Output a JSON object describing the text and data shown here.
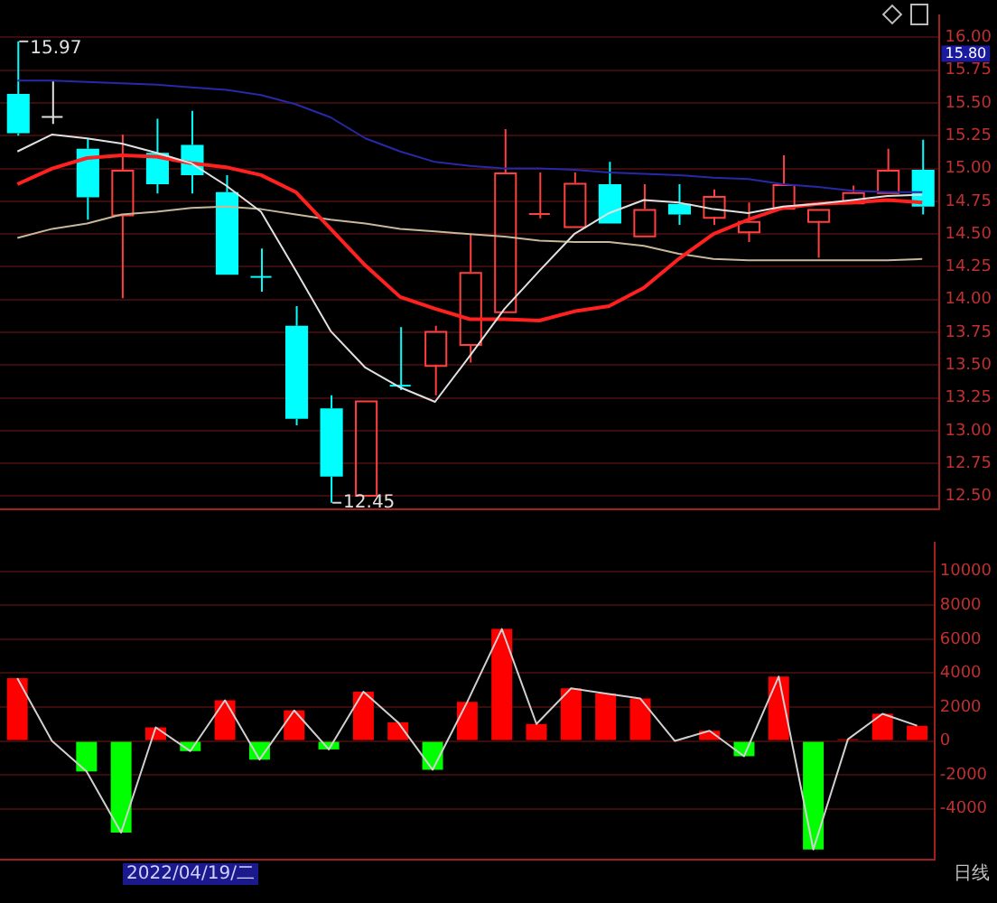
{
  "chart_data": [
    {
      "type": "candlestick",
      "categories": [
        null,
        null,
        null,
        null,
        null,
        null,
        null,
        null,
        null,
        null,
        null,
        null,
        null,
        null,
        null,
        null,
        null,
        null,
        null,
        null,
        null,
        null,
        null,
        null,
        null,
        null,
        null
      ],
      "ohlc": [
        [
          15.57,
          15.97,
          15.25,
          15.27
        ],
        [
          15.4,
          15.67,
          15.34,
          15.4
        ],
        [
          15.15,
          15.23,
          14.61,
          14.78
        ],
        [
          14.65,
          15.26,
          14.01,
          14.99
        ],
        [
          15.12,
          15.38,
          14.81,
          14.88
        ],
        [
          15.18,
          15.44,
          14.81,
          14.95
        ],
        [
          14.82,
          14.95,
          14.19,
          14.19
        ],
        [
          14.18,
          14.39,
          14.06,
          14.18
        ],
        [
          13.8,
          13.95,
          13.04,
          13.09
        ],
        [
          13.17,
          13.27,
          12.45,
          12.65
        ],
        [
          12.51,
          13.23,
          12.51,
          13.23
        ],
        [
          13.35,
          13.79,
          13.31,
          13.35
        ],
        [
          13.5,
          13.8,
          13.27,
          13.76
        ],
        [
          13.66,
          14.5,
          13.52,
          14.21
        ],
        [
          13.91,
          15.3,
          13.91,
          14.97
        ],
        [
          14.66,
          14.97,
          14.62,
          14.66
        ],
        [
          14.56,
          14.97,
          14.56,
          14.89
        ],
        [
          14.88,
          15.05,
          14.58,
          14.58
        ],
        [
          14.49,
          14.88,
          14.49,
          14.69
        ],
        [
          14.73,
          14.88,
          14.57,
          14.65
        ],
        [
          14.63,
          14.84,
          14.57,
          14.79
        ],
        [
          14.52,
          14.74,
          14.44,
          14.6
        ],
        [
          14.7,
          15.1,
          14.7,
          14.88
        ],
        [
          14.6,
          14.69,
          14.32,
          14.69
        ],
        [
          14.74,
          14.87,
          14.74,
          14.82
        ],
        [
          14.82,
          15.15,
          14.82,
          14.99
        ],
        [
          14.99,
          15.22,
          14.65,
          14.71
        ]
      ],
      "colors": [
        "#00ffff",
        "#e0e0e0",
        "#00ffff",
        "#ff4040",
        "#00ffff",
        "#00ffff",
        "#00ffff",
        "#00ffff",
        "#00ffff",
        "#00ffff",
        "#ff4040",
        "#00ffff",
        "#ff4040",
        "#ff4040",
        "#ff4040",
        "#ff4040",
        "#ff4040",
        "#00ffff",
        "#ff4040",
        "#00ffff",
        "#ff4040",
        "#ff4040",
        "#ff4040",
        "#ff4040",
        "#ff4040",
        "#ff4040",
        "#00ffff"
      ],
      "series": [
        {
          "type": "line",
          "color": "#e0e0e0",
          "values": [
            15.13,
            15.26,
            15.23,
            15.19,
            15.12,
            15.04,
            14.87,
            14.67,
            14.22,
            13.76,
            13.48,
            13.33,
            13.22,
            13.57,
            13.93,
            14.22,
            14.5,
            14.66,
            14.76,
            14.74,
            14.69,
            14.66,
            14.71,
            14.73,
            14.76,
            14.79,
            14.8
          ]
        },
        {
          "type": "line",
          "color": "#ff2020",
          "values": [
            14.88,
            15.0,
            15.08,
            15.1,
            15.09,
            15.04,
            15.01,
            14.95,
            14.82,
            14.54,
            14.26,
            14.02,
            13.93,
            13.85,
            13.85,
            13.84,
            13.91,
            13.95,
            14.09,
            14.31,
            14.5,
            14.61,
            14.7,
            14.73,
            14.74,
            14.76,
            14.74
          ]
        },
        {
          "type": "line",
          "color": "#c8b89a",
          "values": [
            14.47,
            14.54,
            14.58,
            14.65,
            14.67,
            14.7,
            14.71,
            14.69,
            14.65,
            14.61,
            14.58,
            14.54,
            14.52,
            14.5,
            14.48,
            14.45,
            14.44,
            14.44,
            14.41,
            14.35,
            14.31,
            14.3,
            14.3,
            14.3,
            14.3,
            14.3,
            14.31
          ]
        },
        {
          "type": "line",
          "color": "#2828a8",
          "values": [
            15.67,
            15.67,
            15.66,
            15.65,
            15.64,
            15.62,
            15.6,
            15.56,
            15.49,
            15.39,
            15.23,
            15.13,
            15.05,
            15.02,
            15.0,
            15.0,
            14.99,
            14.97,
            14.96,
            14.95,
            14.93,
            14.92,
            14.88,
            14.86,
            14.83,
            14.82,
            14.82
          ]
        }
      ],
      "ylim": [
        12.4,
        16.17
      ],
      "yticks": [
        {
          "value": 12.5,
          "label": "12.50"
        },
        {
          "value": 12.75,
          "label": "12.75"
        },
        {
          "value": 13,
          "label": "13.00"
        },
        {
          "value": 13.25,
          "label": "13.25"
        },
        {
          "value": 13.5,
          "label": "13.50"
        },
        {
          "value": 13.75,
          "label": "13.75"
        },
        {
          "value": 14,
          "label": "14.00"
        },
        {
          "value": 14.25,
          "label": "14.25"
        },
        {
          "value": 14.5,
          "label": "14.50"
        },
        {
          "value": 14.75,
          "label": "14.75"
        },
        {
          "value": 15,
          "label": "15.00"
        },
        {
          "value": 15.25,
          "label": "15.25"
        },
        {
          "value": 15.5,
          "label": "15.50"
        },
        {
          "value": 15.75,
          "label": "15.75"
        },
        {
          "value": 16,
          "label": "16.00"
        }
      ],
      "grid": "y",
      "tick_labels": "y",
      "marker": "none",
      "legend": false,
      "annotations": [
        "15.97",
        "12.45",
        "15.80"
      ]
    },
    {
      "type": "bar",
      "categories": [
        null,
        null,
        null,
        null,
        null,
        null,
        null,
        null,
        null,
        null,
        null,
        null,
        null,
        null,
        null,
        null,
        null,
        null,
        null,
        null,
        null,
        null,
        null,
        null,
        null,
        null,
        null
      ],
      "series": [
        {
          "type": "bar",
          "colors": [
            "#ff0000",
            "#ff0000",
            "#00ff00",
            "#00ff00",
            "#ff0000",
            "#00ff00",
            "#ff0000",
            "#00ff00",
            "#ff0000",
            "#00ff00",
            "#ff0000",
            "#ff0000",
            "#00ff00",
            "#ff0000",
            "#ff0000",
            "#ff0000",
            "#ff0000",
            "#ff0000",
            "#ff0000",
            "#ff0000",
            "#ff0000",
            "#00ff00",
            "#ff0000",
            "#00ff00",
            "#ff0000",
            "#ff0000",
            "#ff0000"
          ],
          "values": [
            3700,
            0,
            -1800,
            -5400,
            800,
            -600,
            2400,
            -1100,
            1800,
            -500,
            2900,
            1100,
            -1700,
            2300,
            6600,
            1000,
            3100,
            2800,
            2500,
            0,
            600,
            -900,
            3800,
            -6400,
            100,
            1600,
            900
          ]
        },
        {
          "type": "line",
          "color": "#d0d0d0",
          "values": [
            3700,
            0,
            -1800,
            -5400,
            800,
            -600,
            2400,
            -1100,
            1800,
            -500,
            2900,
            1100,
            -1700,
            2300,
            6600,
            1000,
            3100,
            2800,
            2500,
            0,
            600,
            -900,
            3800,
            -6400,
            100,
            1600,
            900
          ]
        }
      ],
      "ylim": [
        -7000,
        11700
      ],
      "yticks": [
        -4000,
        -2000,
        0,
        2000,
        4000,
        6000,
        8000,
        10000
      ],
      "grid": "y",
      "tick_labels": "y",
      "marker": "none",
      "legend": false,
      "annotations": [
        "2022/04/19/二",
        "日线"
      ]
    }
  ]
}
